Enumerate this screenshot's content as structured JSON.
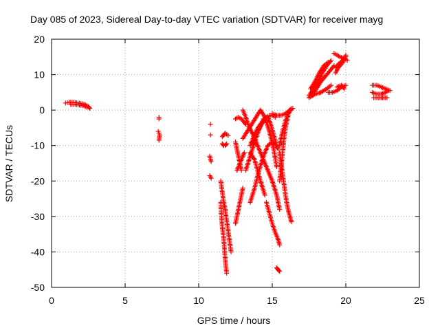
{
  "chart_data": {
    "type": "scatter",
    "title": "Day 085 of 2023, Sidereal Day-to-day VTEC variation (SDTVAR) for receiver mayg",
    "xlabel": "GPS time / hours",
    "ylabel": "SDTVAR / TECUs",
    "xlim": [
      0,
      25
    ],
    "ylim": [
      -50,
      20
    ],
    "xticks": [
      0,
      5,
      10,
      15,
      20,
      25
    ],
    "yticks": [
      -50,
      -40,
      -30,
      -20,
      -10,
      0,
      10,
      20
    ],
    "grid": true,
    "marker": "+",
    "series": [
      {
        "name": "SDTVAR",
        "color": "#ff0000",
        "segments": [
          {
            "x": [
              0.95,
              1.2,
              1.5,
              1.8,
              2.1,
              2.3,
              2.5,
              2.6
            ],
            "y": [
              2.0,
              2.2,
              2.2,
              2.0,
              1.8,
              1.5,
              1.0,
              0.5
            ]
          },
          {
            "x": [
              1.3,
              1.6,
              1.9,
              2.2,
              2.4
            ],
            "y": [
              1.6,
              1.6,
              1.4,
              1.2,
              0.8
            ]
          },
          {
            "x": [
              7.3,
              7.3
            ],
            "y": [
              -2.0,
              -2.5
            ]
          },
          {
            "x": [
              7.25,
              7.3,
              7.35,
              7.3
            ],
            "y": [
              -6.0,
              -6.5,
              -7.0,
              -8.5
            ]
          },
          {
            "x": [
              10.8
            ],
            "y": [
              -4.0
            ]
          },
          {
            "x": [
              10.75,
              10.8,
              10.85
            ],
            "y": [
              -13.0,
              -13.8,
              -14.5
            ]
          },
          {
            "x": [
              10.75,
              10.85
            ],
            "y": [
              -18.5,
              -19.2
            ]
          },
          {
            "x": [
              10.8
            ],
            "y": [
              -7.0
            ]
          },
          {
            "x": [
              11.6,
              11.7,
              11.8,
              11.9,
              12.0
            ],
            "y": [
              -7.5,
              -7.0,
              -6.5,
              -6.8,
              -7.2
            ]
          },
          {
            "x": [
              11.6,
              11.7,
              11.8,
              11.9
            ],
            "y": [
              -9.5,
              -10.0,
              -10.0,
              -9.5
            ]
          },
          {
            "x": [
              11.5,
              11.6,
              11.7,
              11.8,
              11.9,
              12.0,
              12.1,
              12.2
            ],
            "y": [
              -20,
              -23,
              -26,
              -28,
              -31,
              -34,
              -37,
              -40
            ]
          },
          {
            "x": [
              11.5,
              11.55,
              11.6,
              11.7,
              11.75,
              11.8,
              11.85,
              11.9
            ],
            "y": [
              -26,
              -30,
              -33,
              -36,
              -39,
              -42,
              -44,
              -46
            ]
          },
          {
            "x": [
              12.5,
              12.7,
              12.9,
              13.1,
              13.2
            ],
            "y": [
              -2.5,
              -2.0,
              -2.5,
              -3.5,
              -4.0
            ]
          },
          {
            "x": [
              12.5,
              12.6,
              12.7,
              12.8,
              12.9
            ],
            "y": [
              -9.0,
              -11.0,
              -13.0,
              -15.0,
              -17.0
            ]
          },
          {
            "x": [
              12.6,
              12.8,
              13.0,
              13.1
            ],
            "y": [
              -17.0,
              -15.0,
              -13.0,
              -12.0
            ]
          },
          {
            "x": [
              12.5,
              12.6,
              12.7,
              12.8,
              12.9,
              13.0
            ],
            "y": [
              -32,
              -30,
              -28,
              -26,
              -24,
              -22
            ]
          },
          {
            "x": [
              13.0,
              13.2,
              13.4,
              13.7,
              14.0,
              14.3,
              14.6,
              15.0,
              15.3,
              15.5
            ],
            "y": [
              0.0,
              -2.0,
              -4.5,
              -7.0,
              -10.0,
              -13.0,
              -16.0,
              -20.0,
              -24.0,
              -28.0
            ]
          },
          {
            "x": [
              13.0,
              13.3,
              13.6,
              13.9,
              14.2,
              14.5,
              14.8,
              15.1,
              15.3
            ],
            "y": [
              -8.0,
              -6.0,
              -4.0,
              -2.0,
              0.0,
              -2.0,
              -6.0,
              -11.0,
              -16.0
            ]
          },
          {
            "x": [
              13.2,
              13.5,
              13.8,
              14.1,
              14.4,
              14.7,
              14.9,
              15.1,
              15.3
            ],
            "y": [
              -17.0,
              -13.0,
              -9.0,
              -5.5,
              -2.5,
              -2.0,
              -4.0,
              -7.0,
              -10.0
            ]
          },
          {
            "x": [
              13.5,
              13.8,
              14.0,
              14.2,
              14.5
            ],
            "y": [
              -12.0,
              -14.0,
              -17.0,
              -20.0,
              -24.0
            ]
          },
          {
            "x": [
              13.5,
              13.8,
              14.1,
              14.4,
              14.7,
              15.0,
              15.2,
              15.4
            ],
            "y": [
              -26.0,
              -22.0,
              -17.0,
              -13.0,
              -10.0,
              -9.0,
              -9.5,
              -11.0
            ]
          },
          {
            "x": [
              14.6,
              14.8,
              15.0,
              15.2,
              15.4,
              15.5
            ],
            "y": [
              -26.0,
              -29.0,
              -32.0,
              -34.5,
              -36.5,
              -38.0
            ]
          },
          {
            "x": [
              13.5,
              13.7,
              13.9,
              14.1,
              14.3,
              14.5,
              14.7
            ],
            "y": [
              -10.0,
              -8.0,
              -6.0,
              -4.5,
              -3.5,
              -3.0,
              -3.0
            ]
          },
          {
            "x": [
              14.0,
              14.2,
              14.4,
              14.6,
              14.8,
              15.0,
              15.2
            ],
            "y": [
              -6.0,
              -4.5,
              -3.0,
              -2.0,
              -1.5,
              -1.5,
              -2.0
            ]
          },
          {
            "x": [
              15.0,
              15.3,
              15.6,
              15.9,
              16.2,
              16.4
            ],
            "y": [
              -1.0,
              -1.5,
              -1.5,
              -1.0,
              0.0,
              0.5
            ]
          },
          {
            "x": [
              15.5,
              15.7,
              15.9,
              16.1,
              16.3
            ],
            "y": [
              -10.0,
              -6.0,
              -3.0,
              -1.0,
              0.5
            ]
          },
          {
            "x": [
              15.5,
              15.6,
              15.7,
              15.8,
              15.9,
              16.0,
              16.1,
              16.2
            ],
            "y": [
              -20.0,
              -16.0,
              -12.0,
              -8.0,
              -5.0,
              -3.0,
              -1.0,
              0.0
            ]
          },
          {
            "x": [
              15.5,
              15.6,
              15.7,
              15.8,
              15.9,
              16.0,
              16.1,
              16.2,
              16.3
            ],
            "y": [
              -12.0,
              -15.0,
              -18.0,
              -21.0,
              -24.0,
              -26.5,
              -28.5,
              -30.0,
              -31.5
            ]
          },
          {
            "x": [
              15.3,
              15.4,
              15.5
            ],
            "y": [
              -44.5,
              -45.0,
              -45.5
            ]
          },
          {
            "x": [
              17.5,
              17.8,
              18.1,
              18.4,
              18.7,
              19.0
            ],
            "y": [
              4.0,
              6.0,
              8.0,
              10.5,
              12.5,
              14.0
            ]
          },
          {
            "x": [
              17.6,
              17.9,
              18.2,
              18.5,
              18.8
            ],
            "y": [
              6.0,
              8.0,
              10.5,
              12.5,
              13.5
            ]
          },
          {
            "x": [
              17.5,
              17.9,
              18.3,
              18.7,
              19.0
            ],
            "y": [
              3.5,
              4.5,
              5.0,
              6.0,
              7.0
            ]
          },
          {
            "x": [
              17.7,
              18.0,
              18.3,
              18.6,
              18.9,
              19.2
            ],
            "y": [
              4.5,
              6.0,
              8.0,
              9.5,
              11.0,
              12.5
            ]
          },
          {
            "x": [
              18.8,
              19.1,
              19.4,
              19.7,
              20.0
            ],
            "y": [
              5.0,
              5.0,
              5.5,
              6.5,
              7.0
            ]
          },
          {
            "x": [
              19.2,
              19.4,
              19.6,
              19.9,
              20.1
            ],
            "y": [
              16.0,
              15.5,
              15.0,
              14.5,
              14.0
            ]
          },
          {
            "x": [
              19.3,
              19.5,
              19.8,
              20.0
            ],
            "y": [
              12.0,
              13.0,
              14.0,
              15.0
            ]
          },
          {
            "x": [
              19.3,
              19.5,
              19.8,
              20.0
            ],
            "y": [
              10.5,
              12.0,
              13.5,
              15.5
            ]
          },
          {
            "x": [
              19.4,
              19.7,
              19.9
            ],
            "y": [
              6.5,
              7.0,
              6.0
            ]
          },
          {
            "x": [
              21.8,
              22.1,
              22.4,
              22.7,
              23.0
            ],
            "y": [
              7.0,
              7.0,
              6.5,
              6.0,
              5.5
            ]
          },
          {
            "x": [
              21.8,
              22.1,
              22.4,
              22.7,
              22.9
            ],
            "y": [
              5.0,
              4.5,
              4.5,
              5.0,
              5.5
            ]
          },
          {
            "x": [
              21.9,
              22.2,
              22.5,
              22.8
            ],
            "y": [
              3.5,
              3.5,
              3.5,
              3.5
            ]
          }
        ]
      }
    ]
  }
}
